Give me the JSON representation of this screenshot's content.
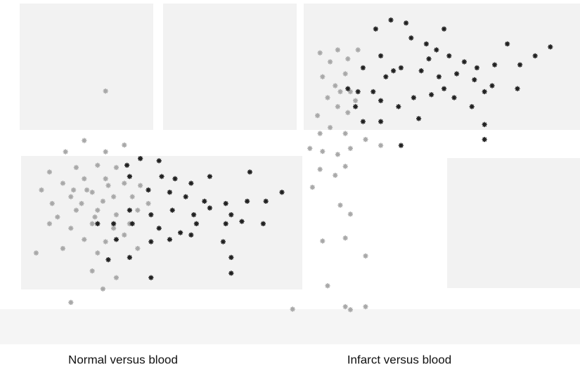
{
  "chart_data": [
    {
      "type": "scatter",
      "title": "Normal versus blood",
      "xlim": [
        0,
        100
      ],
      "ylim": [
        0,
        100
      ],
      "series": [
        {
          "color": "#a8a8a8",
          "x": [
            21,
            36,
            14,
            29,
            42,
            8,
            18,
            26,
            33,
            38,
            5,
            13,
            21,
            29,
            36,
            42,
            9,
            16,
            24,
            32,
            39,
            45,
            11,
            18,
            26,
            33,
            41,
            8,
            16,
            24,
            32,
            38,
            21,
            29,
            36,
            13,
            26,
            41,
            3,
            24,
            33,
            28,
            16,
            29,
            99,
            22,
            28,
            20,
            25,
            30,
            17
          ],
          "values": [
            75,
            73,
            70,
            70,
            67,
            61,
            63,
            64,
            63,
            59,
            53,
            56,
            58,
            58,
            56,
            55,
            47,
            50,
            52,
            50,
            50,
            47,
            41,
            44,
            44,
            42,
            44,
            38,
            36,
            38,
            36,
            38,
            31,
            30,
            33,
            27,
            25,
            27,
            25,
            17,
            14,
            9,
            3,
            97,
            0,
            53,
            48,
            47,
            41,
            55,
            53
          ]
        },
        {
          "color": "#202020",
          "x": [
            37,
            42,
            49,
            38,
            50,
            55,
            61,
            45,
            53,
            59,
            66,
            74,
            82,
            89,
            95,
            38,
            46,
            54,
            62,
            68,
            76,
            32,
            39,
            49,
            57,
            63,
            74,
            80,
            88,
            26,
            33,
            46,
            53,
            61,
            73,
            38,
            30,
            76,
            46,
            76,
            68,
            83
          ],
          "values": [
            64,
            67,
            66,
            59,
            59,
            58,
            56,
            53,
            52,
            50,
            48,
            47,
            48,
            48,
            52,
            44,
            42,
            44,
            42,
            45,
            42,
            38,
            38,
            36,
            34,
            38,
            38,
            39,
            38,
            38,
            31,
            30,
            31,
            33,
            30,
            23,
            22,
            23,
            14,
            16,
            59,
            61
          ]
        }
      ]
    },
    {
      "type": "scatter",
      "title": "Infarct versus blood",
      "xlim": [
        0,
        100
      ],
      "ylim": [
        0,
        100
      ],
      "series": [
        {
          "color": "#a8a8a8",
          "x": [
            7,
            11,
            14,
            18,
            22,
            8,
            13,
            17,
            19,
            10,
            14,
            18,
            21,
            6,
            11,
            17,
            3,
            8,
            14,
            19,
            25,
            31,
            7,
            13,
            17,
            4,
            15,
            19,
            8,
            17,
            10,
            25,
            17,
            19,
            25,
            7,
            15
          ],
          "values": [
            87,
            84,
            88,
            85,
            88,
            79,
            76,
            80,
            74,
            72,
            69,
            67,
            71,
            66,
            62,
            60,
            55,
            54,
            53,
            55,
            58,
            56,
            48,
            46,
            49,
            42,
            36,
            33,
            24,
            25,
            9,
            19,
            2,
            1,
            2,
            60,
            74
          ]
        },
        {
          "color": "#202020",
          "x": [
            29,
            35,
            41,
            56,
            81,
            98,
            92,
            31,
            36,
            43,
            49,
            53,
            58,
            64,
            69,
            76,
            86,
            24,
            22,
            28,
            33,
            39,
            47,
            54,
            61,
            68,
            75,
            85,
            18,
            21,
            31,
            38,
            44,
            51,
            60,
            67,
            72,
            31,
            39,
            46,
            72,
            72,
            24,
            50,
            56
          ],
          "values": [
            95,
            98,
            97,
            95,
            90,
            89,
            86,
            86,
            81,
            92,
            90,
            88,
            86,
            84,
            82,
            83,
            83,
            82,
            74,
            74,
            79,
            82,
            81,
            79,
            80,
            78,
            76,
            75,
            75,
            69,
            71,
            69,
            72,
            73,
            72,
            69,
            74,
            64,
            56,
            65,
            63,
            58,
            64,
            85,
            75
          ]
        }
      ]
    }
  ]
}
